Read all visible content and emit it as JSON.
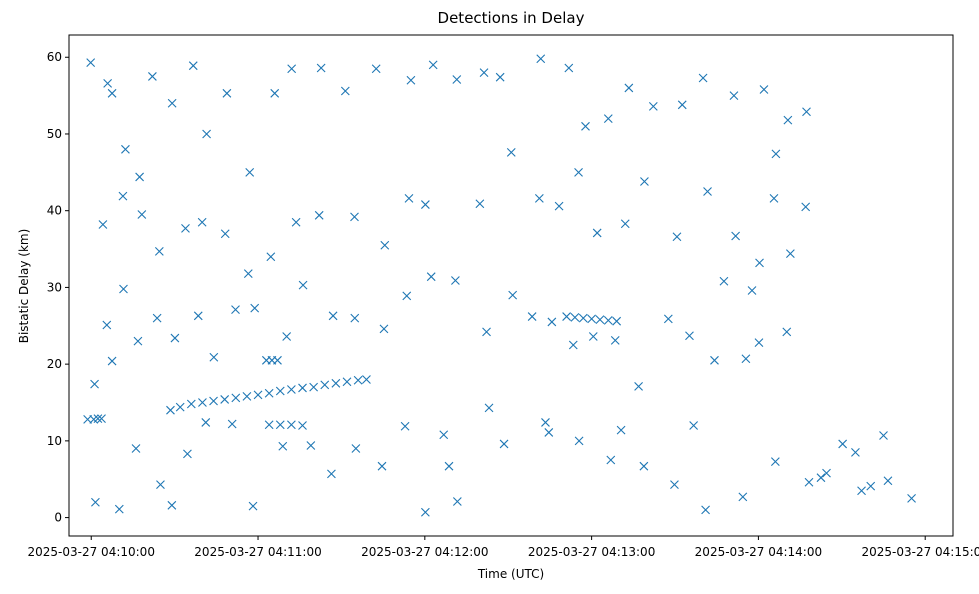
{
  "chart_data": {
    "type": "scatter",
    "title": "Detections in Delay",
    "xlabel": "Time (UTC)",
    "ylabel": "Bistatic Delay (km)",
    "x_unit": "time (UTC)",
    "xlim": [
      "2025-03-27 04:09:52",
      "2025-03-27 04:15:10"
    ],
    "ylim": [
      -2.4,
      62.9
    ],
    "x_ticks": [
      "2025-03-27 04:10:00",
      "2025-03-27 04:11:00",
      "2025-03-27 04:12:00",
      "2025-03-27 04:13:00",
      "2025-03-27 04:14:00",
      "2025-03-27 04:15:00"
    ],
    "y_ticks": [
      0,
      10,
      20,
      30,
      40,
      50,
      60
    ],
    "grid": false,
    "legend": "none",
    "marker": "x",
    "color": "#1f77b4",
    "series": [
      {
        "points": [
          [
            "04:09:59.8",
            59.3
          ],
          [
            "04:10:01.5",
            2.0
          ],
          [
            "04:10:05.9",
            56.6
          ],
          [
            "04:10:07.5",
            55.3
          ],
          [
            "04:10:12.3",
            48.0
          ],
          [
            "04:10:17.4",
            44.4
          ],
          [
            "04:10:22.0",
            57.5
          ],
          [
            "04:10:29.1",
            54.0
          ],
          [
            "04:10:36.7",
            58.9
          ],
          [
            "04:10:41.5",
            50.0
          ],
          [
            "04:10:48.8",
            55.3
          ],
          [
            "04:10:57.0",
            45.0
          ],
          [
            "04:11:06.0",
            55.3
          ],
          [
            "04:11:12.1",
            58.5
          ],
          [
            "04:11:22.7",
            58.6
          ],
          [
            "04:11:31.4",
            55.6
          ],
          [
            "04:11:42.5",
            58.5
          ],
          [
            "04:11:55.0",
            57.0
          ],
          [
            "04:12:03.0",
            59.0
          ],
          [
            "04:12:11.5",
            57.1
          ],
          [
            "04:12:21.3",
            58.0
          ],
          [
            "04:12:27.1",
            57.4
          ],
          [
            "04:12:41.7",
            59.8
          ],
          [
            "04:12:51.8",
            58.6
          ],
          [
            "04:12:57.8",
            51.0
          ],
          [
            "04:13:06.0",
            52.0
          ],
          [
            "04:13:13.4",
            56.0
          ],
          [
            "04:13:22.2",
            53.6
          ],
          [
            "04:13:32.6",
            53.8
          ],
          [
            "04:13:40.1",
            57.3
          ],
          [
            "04:13:51.2",
            55.0
          ],
          [
            "04:14:02.0",
            55.8
          ],
          [
            "04:14:10.6",
            51.8
          ],
          [
            "04:14:17.3",
            52.9
          ],
          [
            "04:14:06.3",
            47.4
          ],
          [
            "04:10:04.2",
            38.2
          ],
          [
            "04:10:11.4",
            41.9
          ],
          [
            "04:10:18.2",
            39.5
          ],
          [
            "04:10:24.5",
            34.7
          ],
          [
            "04:10:33.9",
            37.7
          ],
          [
            "04:10:39.9",
            38.5
          ],
          [
            "04:10:48.2",
            37.0
          ],
          [
            "04:10:56.5",
            31.8
          ],
          [
            "04:11:04.6",
            34.0
          ],
          [
            "04:11:13.7",
            38.5
          ],
          [
            "04:11:22.0",
            39.4
          ],
          [
            "04:11:34.7",
            39.2
          ],
          [
            "04:11:45.6",
            35.5
          ],
          [
            "04:11:54.3",
            41.6
          ],
          [
            "04:12:00.2",
            40.8
          ],
          [
            "04:12:19.8",
            40.9
          ],
          [
            "04:12:31.1",
            47.6
          ],
          [
            "04:12:41.2",
            41.6
          ],
          [
            "04:12:48.3",
            40.6
          ],
          [
            "04:12:55.3",
            45.0
          ],
          [
            "04:13:02.0",
            37.1
          ],
          [
            "04:13:12.1",
            38.3
          ],
          [
            "04:13:19.0",
            43.8
          ],
          [
            "04:13:30.7",
            36.6
          ],
          [
            "04:13:41.7",
            42.5
          ],
          [
            "04:13:51.8",
            36.7
          ],
          [
            "04:14:05.6",
            41.6
          ],
          [
            "04:14:17.0",
            40.5
          ],
          [
            "04:14:11.5",
            34.4
          ],
          [
            "04:13:57.7",
            29.6
          ],
          [
            "04:10:01.2",
            17.4
          ],
          [
            "04:10:05.6",
            25.1
          ],
          [
            "04:10:07.5",
            20.4
          ],
          [
            "04:10:11.6",
            29.8
          ],
          [
            "04:10:16.8",
            23.0
          ],
          [
            "04:10:23.7",
            26.0
          ],
          [
            "04:10:30.1",
            23.4
          ],
          [
            "04:10:38.5",
            26.3
          ],
          [
            "04:10:44.1",
            20.9
          ],
          [
            "04:10:51.9",
            27.1
          ],
          [
            "04:10:58.8",
            27.3
          ],
          [
            "04:11:10.3",
            23.6
          ],
          [
            "04:11:16.2",
            30.3
          ],
          [
            "04:11:27.0",
            26.3
          ],
          [
            "04:11:34.8",
            26.0
          ],
          [
            "04:11:45.3",
            24.6
          ],
          [
            "04:11:53.5",
            28.9
          ],
          [
            "04:12:02.3",
            31.4
          ],
          [
            "04:12:11.0",
            30.9
          ],
          [
            "04:12:22.2",
            24.2
          ],
          [
            "04:12:31.6",
            29.0
          ],
          [
            "04:12:38.6",
            26.2
          ],
          [
            "04:12:45.7",
            25.5
          ],
          [
            "04:12:53.4",
            22.5
          ],
          [
            "04:13:00.6",
            23.6
          ],
          [
            "04:13:08.5",
            23.1
          ],
          [
            "04:13:16.9",
            17.1
          ],
          [
            "04:13:27.6",
            25.9
          ],
          [
            "04:13:35.2",
            23.7
          ],
          [
            "04:13:44.2",
            20.5
          ],
          [
            "04:13:55.5",
            20.7
          ],
          [
            "04:14:00.2",
            22.8
          ],
          [
            "04:14:10.2",
            24.2
          ],
          [
            "04:14:00.4",
            33.2
          ],
          [
            "04:13:47.6",
            30.8
          ],
          [
            "04:09:58.7",
            12.8
          ],
          [
            "04:10:00.9",
            12.8
          ],
          [
            "04:10:02.4",
            12.9
          ],
          [
            "04:10:03.7",
            12.9
          ],
          [
            "04:10:10.1",
            1.1
          ],
          [
            "04:10:16.1",
            9.0
          ],
          [
            "04:10:24.9",
            4.3
          ],
          [
            "04:10:29.0",
            1.6
          ],
          [
            "04:10:34.6",
            8.3
          ],
          [
            "04:10:41.2",
            12.4
          ],
          [
            "04:10:50.7",
            12.2
          ],
          [
            "04:10:58.2",
            1.5
          ],
          [
            "04:11:08.9",
            9.3
          ],
          [
            "04:11:19.0",
            9.4
          ],
          [
            "04:11:26.4",
            5.7
          ],
          [
            "04:11:35.2",
            9.0
          ],
          [
            "04:11:44.6",
            6.7
          ],
          [
            "04:11:52.9",
            11.9
          ],
          [
            "04:12:00.2",
            0.7
          ],
          [
            "04:12:08.7",
            6.7
          ],
          [
            "04:12:11.7",
            2.1
          ],
          [
            "04:12:28.5",
            9.6
          ],
          [
            "04:12:44.6",
            11.1
          ],
          [
            "04:12:55.5",
            10.0
          ],
          [
            "04:13:06.9",
            7.5
          ],
          [
            "04:13:18.8",
            6.7
          ],
          [
            "04:13:29.8",
            4.3
          ],
          [
            "04:13:41.0",
            1.0
          ],
          [
            "04:13:54.4",
            2.7
          ],
          [
            "04:14:06.1",
            7.3
          ],
          [
            "04:14:18.2",
            4.6
          ],
          [
            "04:14:24.5",
            5.8
          ],
          [
            "04:14:37.1",
            3.5
          ],
          [
            "04:14:46.6",
            4.8
          ],
          [
            "04:14:55.1",
            2.5
          ],
          [
            "04:14:34.9",
            8.5
          ],
          [
            "04:14:45.0",
            10.7
          ],
          [
            "04:14:40.4",
            4.1
          ],
          [
            "04:14:30.3",
            9.6
          ],
          [
            "04:14:22.5",
            5.2
          ],
          [
            "04:13:36.7",
            12.0
          ],
          [
            "04:13:10.6",
            11.4
          ],
          [
            "04:12:43.4",
            12.4
          ],
          [
            "04:12:23.1",
            14.3
          ],
          [
            "04:12:06.8",
            10.8
          ],
          [
            "04:10:28.5",
            14.0
          ],
          [
            "04:10:32.0",
            14.4
          ],
          [
            "04:10:36.0",
            14.8
          ],
          [
            "04:10:40.0",
            15.0
          ],
          [
            "04:10:44.0",
            15.2
          ],
          [
            "04:10:48.0",
            15.4
          ],
          [
            "04:10:52.0",
            15.6
          ],
          [
            "04:10:56.0",
            15.8
          ],
          [
            "04:11:00.0",
            16.0
          ],
          [
            "04:11:04.0",
            16.2
          ],
          [
            "04:11:08.0",
            16.5
          ],
          [
            "04:11:12.0",
            16.7
          ],
          [
            "04:11:16.0",
            16.9
          ],
          [
            "04:11:20.0",
            17.0
          ],
          [
            "04:11:24.0",
            17.3
          ],
          [
            "04:11:28.0",
            17.5
          ],
          [
            "04:11:32.0",
            17.7
          ],
          [
            "04:11:36.0",
            17.9
          ],
          [
            "04:11:39.0",
            18.0
          ],
          [
            "04:11:03.0",
            20.5
          ],
          [
            "04:11:05.0",
            20.5
          ],
          [
            "04:11:07.0",
            20.5
          ],
          [
            "04:11:04.0",
            12.1
          ],
          [
            "04:11:08.0",
            12.1
          ],
          [
            "04:11:12.0",
            12.1
          ],
          [
            "04:11:16.0",
            12.0
          ],
          [
            "04:12:51.0",
            26.2
          ],
          [
            "04:12:54.0",
            26.1
          ],
          [
            "04:12:57.0",
            26.0
          ],
          [
            "04:13:00.0",
            25.9
          ],
          [
            "04:13:03.0",
            25.8
          ],
          [
            "04:13:06.0",
            25.7
          ],
          [
            "04:13:09.0",
            25.6
          ]
        ]
      }
    ]
  }
}
